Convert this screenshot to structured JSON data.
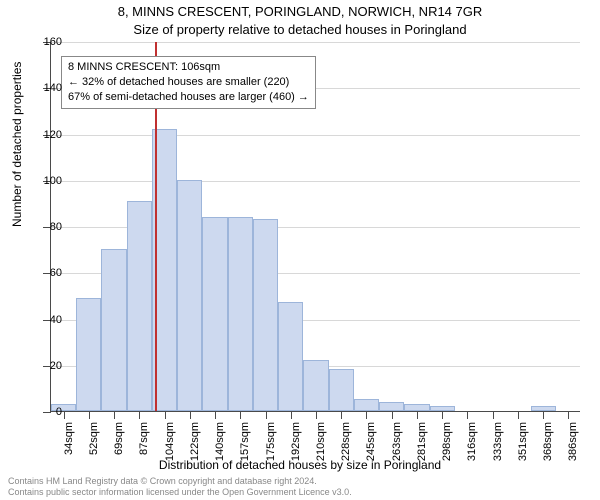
{
  "title": "8, MINNS CRESCENT, PORINGLAND, NORWICH, NR14 7GR",
  "subtitle": "Size of property relative to detached houses in Poringland",
  "y_axis_label": "Number of detached properties",
  "x_axis_label": "Distribution of detached houses by size in Poringland",
  "chart": {
    "type": "histogram",
    "ylim": [
      0,
      160
    ],
    "ytick_step": 20,
    "bar_fill": "#cdd9ef",
    "bar_stroke": "#9db5da",
    "grid_color": "#d8d8d8",
    "axis_color": "#4a4a4a",
    "background_color": "#ffffff",
    "marker_color": "#c03030",
    "marker_x_category": "104sqm",
    "categories": [
      "34sqm",
      "52sqm",
      "69sqm",
      "87sqm",
      "104sqm",
      "122sqm",
      "140sqm",
      "157sqm",
      "175sqm",
      "192sqm",
      "210sqm",
      "228sqm",
      "245sqm",
      "263sqm",
      "281sqm",
      "298sqm",
      "316sqm",
      "333sqm",
      "351sqm",
      "368sqm",
      "386sqm"
    ],
    "values": [
      3,
      49,
      70,
      91,
      122,
      100,
      84,
      84,
      83,
      47,
      22,
      18,
      5,
      4,
      3,
      2,
      0,
      0,
      0,
      2,
      0
    ],
    "title_fontsize": 13,
    "label_fontsize": 12,
    "tick_fontsize": 11
  },
  "annotation": {
    "line1": "8 MINNS CRESCENT: 106sqm",
    "line2": "← 32% of detached houses are smaller (220)",
    "line3": "67% of semi-detached houses are larger (460) →",
    "border_color": "#888888",
    "background_color": "#ffffff",
    "fontsize": 11
  },
  "footer": {
    "line1": "Contains HM Land Registry data © Crown copyright and database right 2024.",
    "line2": "Contains public sector information licensed under the Open Government Licence v3.0.",
    "color": "#888888",
    "fontsize": 9
  }
}
